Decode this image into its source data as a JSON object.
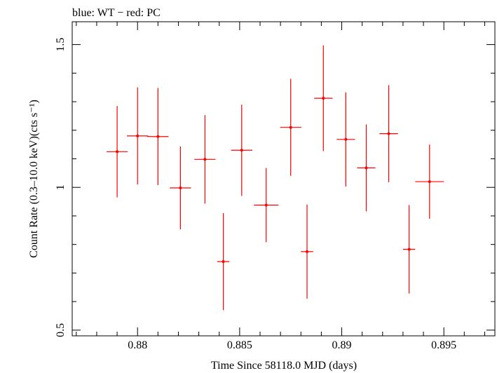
{
  "chart_data": {
    "type": "scatter",
    "title": "blue: WT − red: PC",
    "xlabel": "Time Since 58118.0 MJD (days)",
    "ylabel": "Count Rate (0.3–10.0 keV)(cts s⁻¹)",
    "xlim": [
      0.8768,
      0.8975
    ],
    "ylim": [
      0.48,
      1.58
    ],
    "x_ticks": [
      0.88,
      0.885,
      0.89,
      0.895
    ],
    "x_tick_labels": [
      "0.88",
      "0.885",
      "0.89",
      "0.895"
    ],
    "y_ticks": [
      0.5,
      1,
      1.5
    ],
    "y_tick_labels": [
      "0.5",
      "1",
      "1.5"
    ],
    "grid": false,
    "series": [
      {
        "name": "PC",
        "color": "#ff0000",
        "points": [
          {
            "x": 0.879,
            "xerr": 0.00052,
            "y": 1.125,
            "yerr": 0.16
          },
          {
            "x": 0.88,
            "xerr": 0.00052,
            "y": 1.18,
            "yerr": 0.17
          },
          {
            "x": 0.881,
            "xerr": 0.00052,
            "y": 1.178,
            "yerr": 0.17
          },
          {
            "x": 0.8821,
            "xerr": 0.00052,
            "y": 0.998,
            "yerr": 0.145
          },
          {
            "x": 0.8833,
            "xerr": 0.00052,
            "y": 1.098,
            "yerr": 0.155
          },
          {
            "x": 0.8842,
            "xerr": 0.0003,
            "y": 0.74,
            "yerr": 0.17
          },
          {
            "x": 0.8851,
            "xerr": 0.00052,
            "y": 1.13,
            "yerr": 0.16
          },
          {
            "x": 0.8863,
            "xerr": 0.0006,
            "y": 0.938,
            "yerr": 0.13
          },
          {
            "x": 0.8875,
            "xerr": 0.00052,
            "y": 1.21,
            "yerr": 0.17
          },
          {
            "x": 0.8883,
            "xerr": 0.0003,
            "y": 0.775,
            "yerr": 0.165
          },
          {
            "x": 0.8891,
            "xerr": 0.00045,
            "y": 1.312,
            "yerr": 0.185
          },
          {
            "x": 0.8902,
            "xerr": 0.00045,
            "y": 1.168,
            "yerr": 0.165
          },
          {
            "x": 0.8912,
            "xerr": 0.00045,
            "y": 1.068,
            "yerr": 0.152
          },
          {
            "x": 0.8923,
            "xerr": 0.00045,
            "y": 1.188,
            "yerr": 0.17
          },
          {
            "x": 0.8933,
            "xerr": 0.0003,
            "y": 0.783,
            "yerr": 0.155
          },
          {
            "x": 0.8943,
            "xerr": 0.0007,
            "y": 1.02,
            "yerr": 0.13
          }
        ]
      }
    ]
  }
}
